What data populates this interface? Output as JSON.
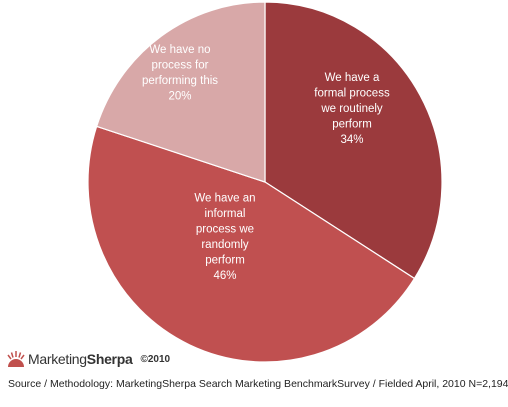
{
  "chart_data": {
    "type": "pie",
    "slices": [
      {
        "label_lines": [
          "We have a",
          "formal process",
          "we routinely",
          "perform"
        ],
        "value": 34,
        "value_label": "34%",
        "color": "#9b3a3d"
      },
      {
        "label_lines": [
          "We have an",
          "informal",
          "process we",
          "randomly",
          "perform"
        ],
        "value": 46,
        "value_label": "46%",
        "color": "#c05050"
      },
      {
        "label_lines": [
          "We have no",
          "process for",
          "performing this"
        ],
        "value": 20,
        "value_label": "20%",
        "color": "#d8a8a8"
      }
    ]
  },
  "brand": {
    "name_part1": "Marketing",
    "name_part2": "Sherpa",
    "year": "©2010",
    "icon": "sunrise-logo-icon"
  },
  "source": "Source / Methodology: MarketingSherpa Search Marketing BenchmarkSurvey / Fielded April, 2010 N=2,194"
}
